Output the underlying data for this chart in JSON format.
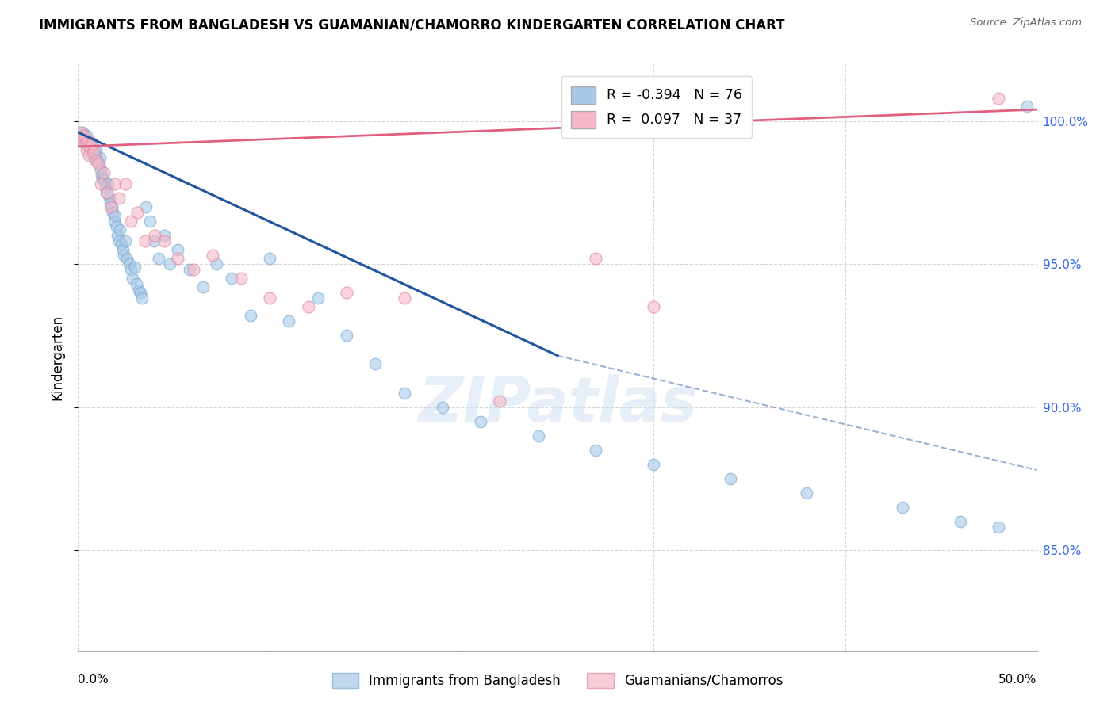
{
  "title": "IMMIGRANTS FROM BANGLADESH VS GUAMANIAN/CHAMORRO KINDERGARTEN CORRELATION CHART",
  "source": "Source: ZipAtlas.com",
  "ylabel": "Kindergarten",
  "legend_blue_label": "Immigrants from Bangladesh",
  "legend_pink_label": "Guamanians/Chamorros",
  "blue_color": "#A8C8E8",
  "blue_edge_color": "#7AAAD0",
  "blue_line_color": "#2255A0",
  "pink_color": "#F5B8C8",
  "pink_edge_color": "#E088A0",
  "pink_line_color": "#E06080",
  "r_blue": "-0.394",
  "n_blue": "76",
  "r_pink": "0.097",
  "n_pink": "37",
  "xmin": 0.0,
  "xmax": 50.0,
  "ymin": 81.5,
  "ymax": 102.0,
  "yticks": [
    85.0,
    90.0,
    95.0,
    100.0
  ],
  "ytick_labels": [
    "85.0%",
    "90.0%",
    "95.0%",
    "100.0%"
  ],
  "blue_x": [
    0.15,
    0.22,
    0.28,
    0.35,
    0.42,
    0.48,
    0.55,
    0.62,
    0.68,
    0.72,
    0.78,
    0.85,
    0.92,
    0.95,
    1.02,
    1.08,
    1.15,
    1.18,
    1.22,
    1.28,
    1.35,
    1.42,
    1.48,
    1.55,
    1.62,
    1.68,
    1.75,
    1.82,
    1.88,
    1.92,
    2.0,
    2.05,
    2.12,
    2.18,
    2.25,
    2.32,
    2.38,
    2.48,
    2.55,
    2.65,
    2.75,
    2.85,
    2.95,
    3.05,
    3.15,
    3.25,
    3.35,
    3.55,
    3.75,
    3.95,
    4.2,
    4.5,
    4.8,
    5.2,
    5.8,
    6.5,
    7.2,
    8.0,
    9.0,
    10.0,
    11.0,
    12.5,
    14.0,
    15.5,
    17.0,
    19.0,
    21.0,
    24.0,
    27.0,
    30.0,
    34.0,
    38.0,
    43.0,
    46.0,
    48.0,
    49.5
  ],
  "blue_y": [
    99.5,
    99.6,
    99.4,
    99.3,
    99.5,
    99.2,
    99.1,
    99.3,
    99.0,
    99.1,
    98.8,
    98.7,
    98.9,
    99.0,
    98.6,
    98.5,
    98.7,
    98.3,
    98.1,
    98.0,
    97.9,
    97.7,
    97.5,
    97.8,
    97.3,
    97.1,
    97.0,
    96.8,
    96.5,
    96.7,
    96.3,
    96.0,
    95.8,
    96.2,
    95.7,
    95.5,
    95.3,
    95.8,
    95.2,
    95.0,
    94.8,
    94.5,
    94.9,
    94.3,
    94.1,
    94.0,
    93.8,
    97.0,
    96.5,
    95.8,
    95.2,
    96.0,
    95.0,
    95.5,
    94.8,
    94.2,
    95.0,
    94.5,
    93.2,
    95.2,
    93.0,
    93.8,
    92.5,
    91.5,
    90.5,
    90.0,
    89.5,
    89.0,
    88.5,
    88.0,
    87.5,
    87.0,
    86.5,
    86.0,
    85.8,
    100.5
  ],
  "pink_x": [
    0.1,
    0.18,
    0.25,
    0.32,
    0.38,
    0.45,
    0.52,
    0.58,
    0.65,
    0.72,
    0.82,
    0.92,
    1.05,
    1.18,
    1.35,
    1.52,
    1.72,
    1.92,
    2.15,
    2.45,
    2.75,
    3.1,
    3.5,
    4.0,
    4.5,
    5.2,
    6.0,
    7.0,
    8.5,
    10.0,
    12.0,
    14.0,
    17.0,
    22.0,
    27.0,
    30.0,
    48.0
  ],
  "pink_y": [
    99.6,
    99.4,
    99.3,
    99.5,
    99.2,
    99.0,
    99.3,
    98.8,
    99.1,
    99.2,
    98.9,
    98.6,
    98.5,
    97.8,
    98.2,
    97.5,
    97.0,
    97.8,
    97.3,
    97.8,
    96.5,
    96.8,
    95.8,
    96.0,
    95.8,
    95.2,
    94.8,
    95.3,
    94.5,
    93.8,
    93.5,
    94.0,
    93.8,
    90.2,
    95.2,
    93.5,
    100.8
  ],
  "blue_reg_x0": 0.0,
  "blue_reg_y0": 99.6,
  "blue_reg_x1": 25.0,
  "blue_reg_y1": 91.8,
  "blue_dash_x0": 25.0,
  "blue_dash_y0": 91.8,
  "blue_dash_x1": 50.0,
  "blue_dash_y1": 87.8,
  "pink_reg_x0": 0.0,
  "pink_reg_y0": 99.1,
  "pink_reg_x1": 50.0,
  "pink_reg_y1": 100.4
}
